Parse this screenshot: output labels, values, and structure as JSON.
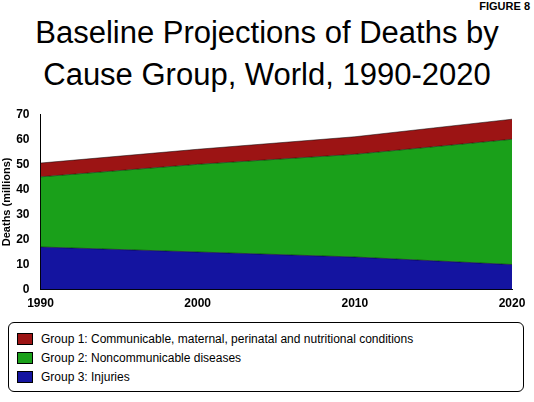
{
  "chart_data": {
    "type": "area",
    "annotation": "FIGURE 8",
    "title": [
      "Baseline Projections of Deaths by",
      "Cause Group, World, 1990-2020"
    ],
    "y_label": "Deaths (millions)",
    "x": [
      1990,
      2000,
      2010,
      2015,
      2020
    ],
    "series": [
      {
        "name": "Group 1: Communicable, maternal, perinatal and nutritional conditions",
        "color": "#9c1414",
        "values": [
          5.5,
          6,
          7,
          7.5,
          8
        ]
      },
      {
        "name": "Group 2: Noncommunicable diseases",
        "color": "#1aa01a",
        "values": [
          28,
          35,
          41,
          45.5,
          50
        ]
      },
      {
        "name": "Group 3: Injuries",
        "color": "#1414a0",
        "values": [
          17,
          15,
          13,
          11.5,
          10
        ]
      }
    ],
    "stacked": true,
    "xlim": [
      1990,
      2020
    ],
    "xticks": [
      1990,
      2000,
      2010,
      2020
    ],
    "ylim": [
      0,
      70
    ],
    "yticks": [
      0,
      10,
      20,
      30,
      40,
      50,
      60,
      70
    ],
    "grid": false,
    "legend": "bottom"
  }
}
